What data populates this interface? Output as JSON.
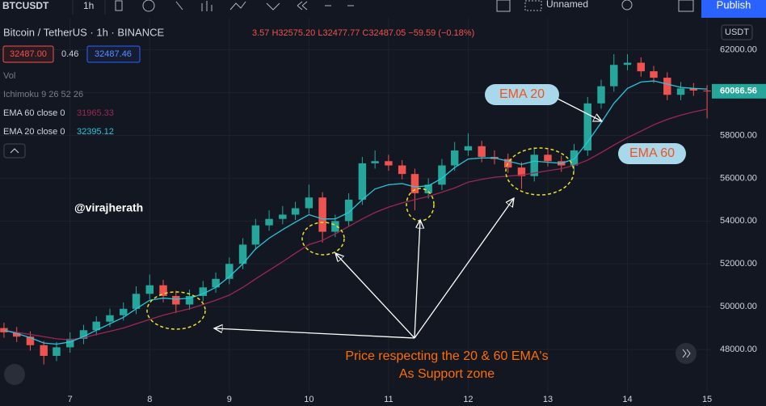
{
  "toolbar": {
    "symbol": "BTCUSDT",
    "interval": "1h",
    "layout_name": "Unnamed",
    "publish": "Publish"
  },
  "chart_data": {
    "type": "candlestick",
    "title": "Bitcoin / TetherUS · 1h · BINANCE",
    "ohlc_text": "3.57 H32575.20 L32477.77 C32487.05 −59.59 (−0.18%)",
    "bid": "32487.00",
    "spread": "0.46",
    "ask": "32487.46",
    "volume_label": "Vol",
    "ichimoku_label": "Ichimoku 9 26 52 26",
    "currency": "USDT",
    "annotations": {
      "author": "@virajherath",
      "ema20": "EMA 20",
      "ema60": "EMA 60",
      "caption_line1": "Price respecting the 20 & 60 EMA's",
      "caption_line2": "As Support zone"
    },
    "x": [
      6.17,
      6.33,
      6.5,
      6.67,
      6.83,
      7,
      7.17,
      7.33,
      7.5,
      7.67,
      7.83,
      8,
      8.17,
      8.33,
      8.5,
      8.67,
      8.83,
      9,
      9.17,
      9.33,
      9.5,
      9.67,
      9.83,
      10,
      10.17,
      10.33,
      10.5,
      10.67,
      10.83,
      11,
      11.17,
      11.33,
      11.5,
      11.67,
      11.83,
      12,
      12.17,
      12.33,
      12.5,
      12.67,
      12.83,
      13,
      13.17,
      13.33,
      13.5,
      13.67,
      13.83,
      14,
      14.17,
      14.33,
      14.5,
      14.67,
      14.83,
      15
    ],
    "xlim": [
      6.12,
      15.05
    ],
    "xticks": [
      7,
      8,
      9,
      10,
      11,
      12,
      13,
      14,
      15
    ],
    "ylim": [
      46000,
      63500
    ],
    "yticks": [
      {
        "value": 48000,
        "label": "48000.00"
      },
      {
        "value": 50000,
        "label": "50000.00"
      },
      {
        "value": 52000,
        "label": "52000.00"
      },
      {
        "value": 54000,
        "label": "54000.00"
      },
      {
        "value": 56000,
        "label": "56000.00"
      },
      {
        "value": 58000,
        "label": "58000.00"
      },
      {
        "value": 60000,
        "label": "60000.00"
      },
      {
        "value": 62000,
        "label": "62000.00"
      }
    ],
    "series": [
      {
        "kind": "candles",
        "up_color": "#26a69a",
        "down_color": "#ef5350",
        "ohlc": [
          [
            49000,
            49250,
            48550,
            48800
          ],
          [
            48800,
            49050,
            48350,
            48600
          ],
          [
            48600,
            48850,
            47950,
            48200
          ],
          [
            48200,
            48400,
            47300,
            47700
          ],
          [
            47700,
            48350,
            47450,
            48100
          ],
          [
            48100,
            48800,
            47850,
            48500
          ],
          [
            48500,
            49150,
            48250,
            48900
          ],
          [
            48900,
            49550,
            48650,
            49300
          ],
          [
            49300,
            49900,
            49050,
            49600
          ],
          [
            49600,
            50200,
            49350,
            49900
          ],
          [
            49900,
            50950,
            49650,
            50600
          ],
          [
            50600,
            51500,
            50350,
            51000
          ],
          [
            51000,
            51250,
            50200,
            50500
          ],
          [
            50500,
            50750,
            49700,
            50100
          ],
          [
            50100,
            50800,
            49850,
            50500
          ],
          [
            50500,
            51200,
            50250,
            50900
          ],
          [
            50900,
            51600,
            50650,
            51300
          ],
          [
            51300,
            52300,
            51050,
            52000
          ],
          [
            52000,
            53200,
            51750,
            52900
          ],
          [
            52900,
            54100,
            52650,
            53800
          ],
          [
            53800,
            54500,
            53550,
            54100
          ],
          [
            54100,
            54700,
            53850,
            54300
          ],
          [
            54300,
            54900,
            54050,
            54600
          ],
          [
            54600,
            55700,
            54350,
            55100
          ],
          [
            55100,
            55350,
            53000,
            53500
          ],
          [
            53500,
            54300,
            53250,
            54000
          ],
          [
            54000,
            55300,
            53750,
            55000
          ],
          [
            55000,
            57000,
            54750,
            56700
          ],
          [
            56700,
            57300,
            56450,
            56800
          ],
          [
            56800,
            57100,
            56350,
            56600
          ],
          [
            56600,
            56850,
            55950,
            56200
          ],
          [
            56200,
            56450,
            54500,
            55300
          ],
          [
            55300,
            56000,
            55050,
            55700
          ],
          [
            55700,
            56900,
            55450,
            56600
          ],
          [
            56600,
            57700,
            56350,
            57300
          ],
          [
            57300,
            58100,
            57050,
            57500
          ],
          [
            57500,
            57750,
            56750,
            57000
          ],
          [
            57000,
            57300,
            56650,
            56900
          ],
          [
            56900,
            57150,
            56250,
            56500
          ],
          [
            56500,
            56750,
            55500,
            56100
          ],
          [
            56100,
            57450,
            55850,
            57100
          ],
          [
            57100,
            57350,
            56550,
            56800
          ],
          [
            56800,
            57050,
            56300,
            56600
          ],
          [
            56600,
            57600,
            56350,
            57300
          ],
          [
            57300,
            59800,
            57050,
            59500
          ],
          [
            59500,
            60600,
            59250,
            60300
          ],
          [
            60300,
            61800,
            60050,
            61300
          ],
          [
            61300,
            61800,
            61050,
            61400
          ],
          [
            61400,
            61650,
            60750,
            61000
          ],
          [
            61000,
            61250,
            60450,
            60700
          ],
          [
            60700,
            60950,
            59650,
            59900
          ],
          [
            59900,
            60500,
            59650,
            60200
          ],
          [
            60200,
            60450,
            59850,
            60100
          ],
          [
            60100,
            60350,
            58800,
            60066.56
          ]
        ]
      },
      {
        "name": "EMA 60 close 0",
        "legend_value": "31965.33",
        "color": "#9c2754",
        "values": [
          48900,
          48800,
          48700,
          48600,
          48500,
          48450,
          48550,
          48700,
          48850,
          49000,
          49200,
          49400,
          49600,
          49750,
          49900,
          50100,
          50300,
          50540,
          50900,
          51300,
          51700,
          52100,
          52500,
          52900,
          53100,
          53400,
          53750,
          54100,
          54400,
          54650,
          54850,
          55000,
          55150,
          55350,
          55550,
          55820,
          55950,
          56050,
          56100,
          56150,
          56250,
          56350,
          56450,
          56600,
          56850,
          57200,
          57550,
          57900,
          58200,
          58500,
          58750,
          58950,
          59100,
          59230
        ]
      },
      {
        "name": "EMA 20 close 0",
        "legend_value": "32395.12",
        "color": "#26c6da",
        "values": [
          48900,
          48750,
          48550,
          48300,
          48250,
          48350,
          48600,
          48900,
          49200,
          49500,
          49900,
          50300,
          50400,
          50350,
          50400,
          50600,
          50900,
          51400,
          52000,
          52700,
          53200,
          53600,
          53950,
          54300,
          54100,
          54100,
          54400,
          55000,
          55500,
          55700,
          55750,
          55600,
          55650,
          56000,
          56500,
          56900,
          56950,
          56950,
          56800,
          56650,
          56800,
          56750,
          56700,
          56900,
          57700,
          58600,
          59500,
          60200,
          60500,
          60550,
          60400,
          60250,
          60200,
          60170
        ]
      }
    ]
  }
}
